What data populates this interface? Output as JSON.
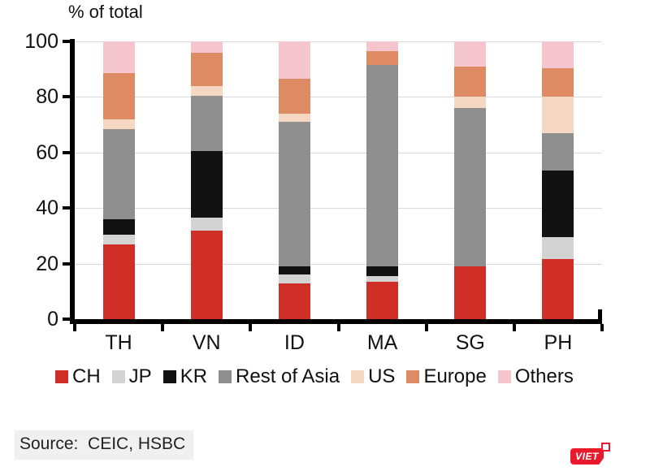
{
  "chart": {
    "title": "% of total"
  },
  "chart_data": {
    "type": "bar",
    "stacked": true,
    "title": "% of total",
    "categories": [
      "TH",
      "VN",
      "ID",
      "MA",
      "SG",
      "PH"
    ],
    "series": [
      {
        "name": "CH",
        "color": "#cf2f27",
        "values": [
          27,
          32,
          13,
          13.5,
          19,
          21.5
        ]
      },
      {
        "name": "JP",
        "color": "#d3d3d3",
        "values": [
          3.5,
          4.5,
          3,
          2,
          0,
          8
        ]
      },
      {
        "name": "KR",
        "color": "#121212",
        "values": [
          5.5,
          24,
          3,
          3.5,
          0,
          24
        ]
      },
      {
        "name": "Rest of Asia",
        "color": "#8f8f8f",
        "values": [
          32.5,
          20,
          52,
          72.5,
          57,
          13.5
        ]
      },
      {
        "name": "US",
        "color": "#f6d8c2",
        "values": [
          3.5,
          3.5,
          3,
          0,
          4,
          13
        ]
      },
      {
        "name": "Europe",
        "color": "#de8a63",
        "values": [
          16.5,
          12,
          12.5,
          5,
          11,
          10.5
        ]
      },
      {
        "name": "Others",
        "color": "#f5c6cd",
        "values": [
          11.5,
          4,
          13.5,
          3.5,
          9,
          9.5
        ]
      }
    ],
    "ylim": [
      0,
      100
    ],
    "yticks": [
      0,
      20,
      40,
      60,
      80,
      100
    ],
    "grid": true,
    "grid_color": "#d9d9d9",
    "axis_color": "#000000",
    "legend_position": "bottom"
  },
  "footer": {
    "source": "Source:  CEIC, HSBC"
  },
  "logo": {
    "text": "VIET",
    "background": "#ea1a2d",
    "text_color": "#ffffff"
  }
}
